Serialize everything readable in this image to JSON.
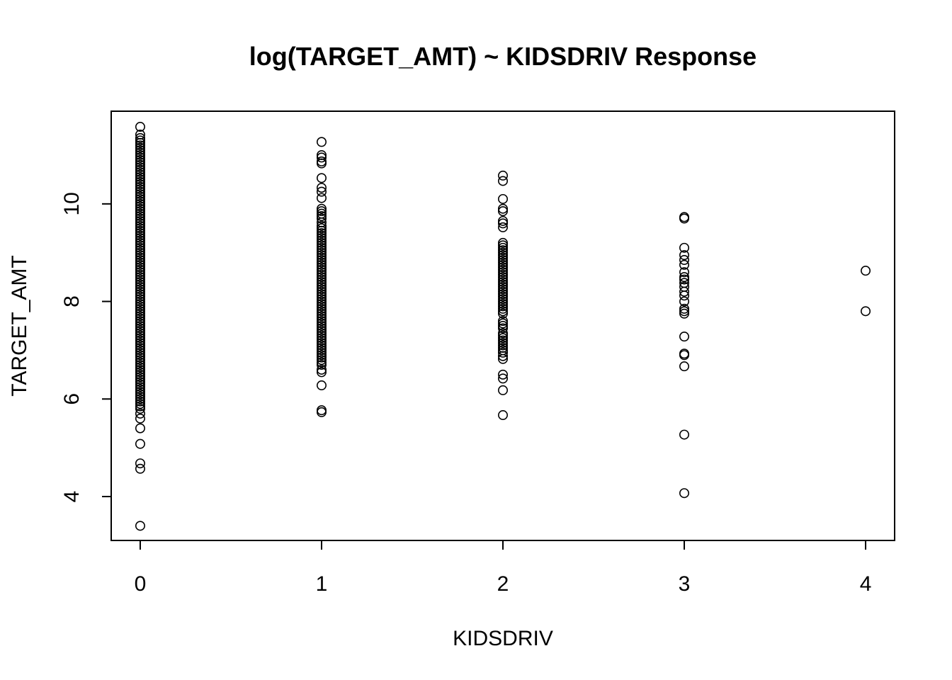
{
  "chart_data": {
    "type": "scatter",
    "title": "log(TARGET_AMT) ~ KIDSDRIV Response",
    "xlabel": "KIDSDRIV",
    "ylabel": "TARGET_AMT",
    "xlim": [
      -0.16,
      4.16
    ],
    "ylim": [
      3.1,
      11.9
    ],
    "x_ticks": [
      0,
      1,
      2,
      3,
      4
    ],
    "y_ticks": [
      4,
      6,
      8,
      10
    ],
    "grid": false,
    "marker": "open-circle",
    "series": [
      {
        "x": 0,
        "values": [
          11.58,
          11.42,
          11.35,
          11.3,
          11.25,
          11.2,
          11.15,
          11.1,
          11.05,
          11.0,
          10.95,
          10.9,
          10.85,
          10.8,
          10.75,
          10.7,
          10.65,
          10.6,
          10.55,
          10.5,
          10.45,
          10.4,
          10.35,
          10.3,
          10.25,
          10.2,
          10.15,
          10.1,
          10.05,
          10.0,
          9.95,
          9.9,
          9.85,
          9.8,
          9.75,
          9.7,
          9.65,
          9.6,
          9.55,
          9.5,
          9.45,
          9.4,
          9.35,
          9.3,
          9.25,
          9.2,
          9.15,
          9.1,
          9.05,
          9.0,
          8.95,
          8.9,
          8.85,
          8.8,
          8.75,
          8.7,
          8.65,
          8.6,
          8.55,
          8.5,
          8.45,
          8.4,
          8.35,
          8.3,
          8.25,
          8.2,
          8.15,
          8.1,
          8.05,
          8.0,
          7.95,
          7.9,
          7.85,
          7.8,
          7.75,
          7.7,
          7.65,
          7.6,
          7.55,
          7.5,
          7.45,
          7.4,
          7.35,
          7.3,
          7.25,
          7.2,
          7.15,
          7.1,
          7.05,
          7.0,
          6.95,
          6.9,
          6.85,
          6.8,
          6.75,
          6.7,
          6.65,
          6.6,
          6.55,
          6.5,
          6.45,
          6.4,
          6.35,
          6.3,
          6.25,
          6.2,
          6.15,
          6.1,
          6.05,
          6.0,
          5.95,
          5.9,
          5.85,
          5.8,
          5.7,
          5.6,
          5.4,
          5.08,
          4.68,
          4.57,
          3.4
        ]
      },
      {
        "x": 1,
        "values": [
          11.27,
          11.0,
          10.95,
          10.87,
          10.83,
          10.53,
          10.33,
          10.25,
          10.12,
          9.9,
          9.85,
          9.8,
          9.75,
          9.7,
          9.62,
          9.55,
          9.5,
          9.45,
          9.4,
          9.35,
          9.3,
          9.25,
          9.2,
          9.15,
          9.1,
          9.05,
          9.0,
          8.95,
          8.9,
          8.85,
          8.8,
          8.75,
          8.7,
          8.65,
          8.6,
          8.55,
          8.5,
          8.45,
          8.4,
          8.35,
          8.3,
          8.25,
          8.2,
          8.15,
          8.1,
          8.05,
          8.0,
          7.95,
          7.9,
          7.85,
          7.8,
          7.75,
          7.7,
          7.65,
          7.6,
          7.55,
          7.5,
          7.45,
          7.4,
          7.35,
          7.3,
          7.25,
          7.2,
          7.15,
          7.1,
          7.05,
          7.0,
          6.95,
          6.9,
          6.85,
          6.8,
          6.75,
          6.7,
          6.6,
          6.55,
          6.28,
          5.77,
          5.73
        ]
      },
      {
        "x": 2,
        "values": [
          10.58,
          10.47,
          10.1,
          9.9,
          9.85,
          9.65,
          9.6,
          9.52,
          9.2,
          9.15,
          9.1,
          9.05,
          9.0,
          8.95,
          8.9,
          8.85,
          8.8,
          8.75,
          8.7,
          8.65,
          8.6,
          8.55,
          8.5,
          8.45,
          8.4,
          8.35,
          8.3,
          8.25,
          8.2,
          8.15,
          8.1,
          8.05,
          8.0,
          7.95,
          7.9,
          7.85,
          7.8,
          7.75,
          7.6,
          7.55,
          7.5,
          7.45,
          7.35,
          7.3,
          7.25,
          7.2,
          7.15,
          7.1,
          7.05,
          7.0,
          6.95,
          6.88,
          6.82,
          6.5,
          6.42,
          6.18,
          5.67
        ]
      },
      {
        "x": 3,
        "values": [
          9.73,
          9.7,
          9.1,
          8.95,
          8.85,
          8.75,
          8.6,
          8.5,
          8.45,
          8.38,
          8.3,
          8.2,
          8.12,
          8.0,
          7.85,
          7.8,
          7.75,
          7.28,
          6.93,
          6.9,
          6.67,
          5.27,
          4.07
        ]
      },
      {
        "x": 4,
        "values": [
          8.63,
          7.8
        ]
      }
    ]
  }
}
